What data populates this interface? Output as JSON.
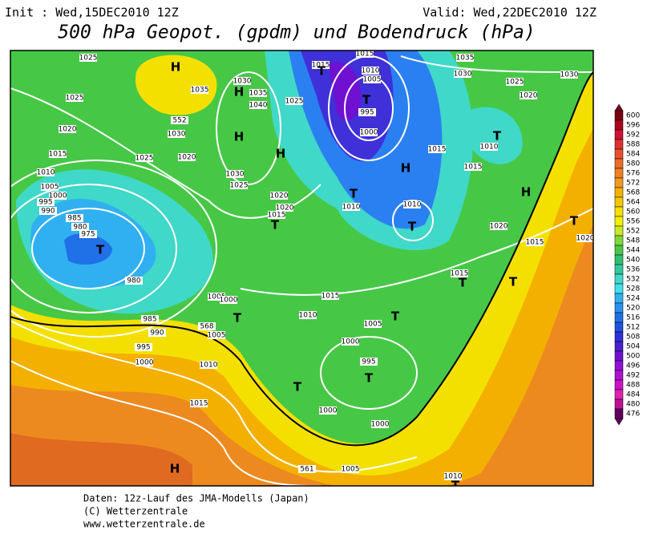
{
  "header": {
    "init": "Init : Wed,15DEC2010 12Z",
    "valid": "Valid: Wed,22DEC2010 12Z",
    "title": "500 hPa Geopot. (gpdm) und Bodendruck (hPa)"
  },
  "map_labels": [
    "1025",
    "1025",
    "1020",
    "1015",
    "1010",
    "1005",
    "1000",
    "995",
    "990",
    "985",
    "980",
    "975",
    "T",
    "980",
    "985",
    "990",
    "995",
    "1000",
    "568",
    "1005",
    "1010",
    "1015",
    "H",
    "1005",
    "1000",
    "T",
    "H",
    "1035",
    "552",
    "1030",
    "1025",
    "1020",
    "H",
    "1030",
    "1035",
    "1040",
    "1025",
    "H",
    "H",
    "1030",
    "1025",
    "1020",
    "1020",
    "1015",
    "T",
    "1015",
    "T",
    "1015",
    "1010",
    "1005",
    "995",
    "1000",
    "T",
    "1035",
    "1030",
    "1025",
    "1030",
    "1020",
    "T",
    "1010",
    "1015",
    "1015",
    "H",
    "T",
    "1010",
    "1010",
    "T",
    "H",
    "T",
    "1020",
    "1020",
    "1015",
    "T",
    "1015",
    "T",
    "1015",
    "1010",
    "1005",
    "T",
    "1000",
    "995",
    "T",
    "T",
    "1000",
    "1000",
    "561",
    "1005",
    "1010",
    "T"
  ],
  "colorbar": {
    "ticks": [
      600,
      596,
      592,
      588,
      584,
      580,
      576,
      572,
      568,
      564,
      560,
      556,
      552,
      548,
      544,
      540,
      536,
      532,
      528,
      524,
      520,
      516,
      512,
      508,
      504,
      500,
      496,
      492,
      488,
      484,
      480,
      476
    ]
  },
  "footer": [
    "Daten: 12z-Lauf des JMA-Modells (Japan)",
    "(C) Wetterzentrale",
    "www.wetterzentrale.de"
  ]
}
